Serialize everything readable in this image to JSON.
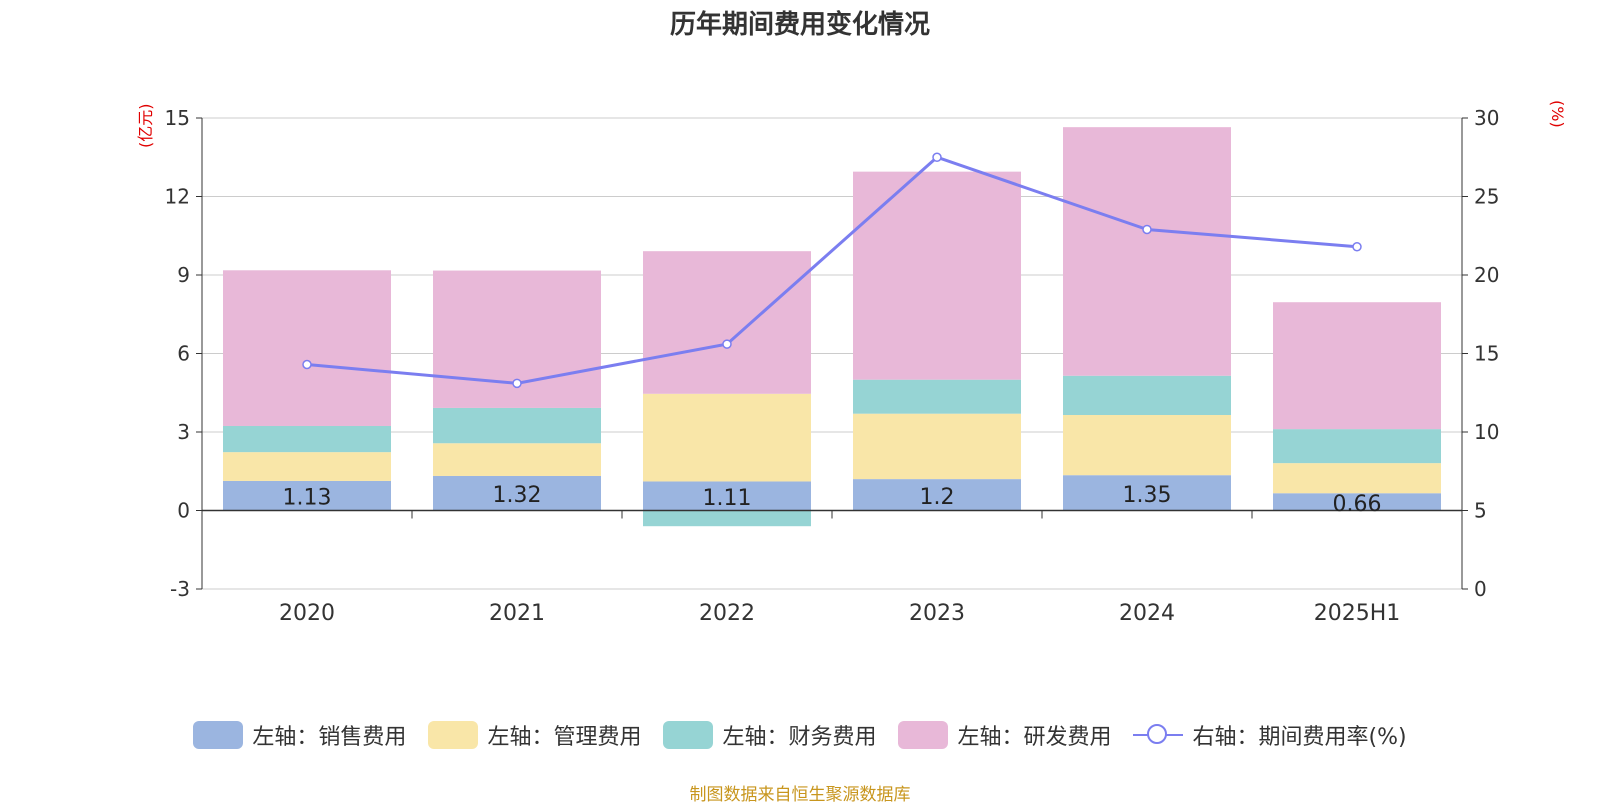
{
  "chart_data": {
    "type": "bar",
    "title": "历年期间费用变化情况",
    "categories": [
      "2020",
      "2021",
      "2022",
      "2023",
      "2024",
      "2025H1"
    ],
    "series": [
      {
        "name": "左轴：销售费用",
        "axis": "left",
        "color": "#9bb5e0",
        "values": [
          1.13,
          1.32,
          1.11,
          1.2,
          1.35,
          0.66
        ]
      },
      {
        "name": "左轴：管理费用",
        "axis": "left",
        "color": "#f9e6a8",
        "values": [
          1.1,
          1.25,
          3.35,
          2.5,
          2.3,
          1.15
        ]
      },
      {
        "name": "左轴：财务费用",
        "axis": "left",
        "color": "#96d4d4",
        "values": [
          1.0,
          1.35,
          -0.6,
          1.3,
          1.5,
          1.3
        ]
      },
      {
        "name": "左轴：研发费用",
        "axis": "left",
        "color": "#e8b8d8",
        "values": [
          5.95,
          5.25,
          5.45,
          7.95,
          9.5,
          4.85
        ]
      },
      {
        "name": "右轴：期间费用率(%)",
        "axis": "right",
        "type": "line",
        "color": "#7b7ef0",
        "values": [
          14.3,
          13.1,
          15.6,
          27.5,
          22.9,
          21.8
        ]
      }
    ],
    "data_labels": [
      "1.13",
      "1.32",
      "1.11",
      "1.2",
      "1.35",
      "0.66"
    ],
    "left_axis": {
      "label": "(亿元)",
      "range": [
        -3,
        15
      ],
      "ticks": [
        "-3",
        "0",
        "3",
        "6",
        "9",
        "12",
        "15"
      ]
    },
    "right_axis": {
      "label": "(%)",
      "range": [
        0,
        30
      ],
      "ticks": [
        "0",
        "5",
        "10",
        "15",
        "20",
        "25",
        "30"
      ]
    },
    "grid": true,
    "legend_position": "bottom"
  },
  "source_note": "制图数据来自恒生聚源数据库"
}
